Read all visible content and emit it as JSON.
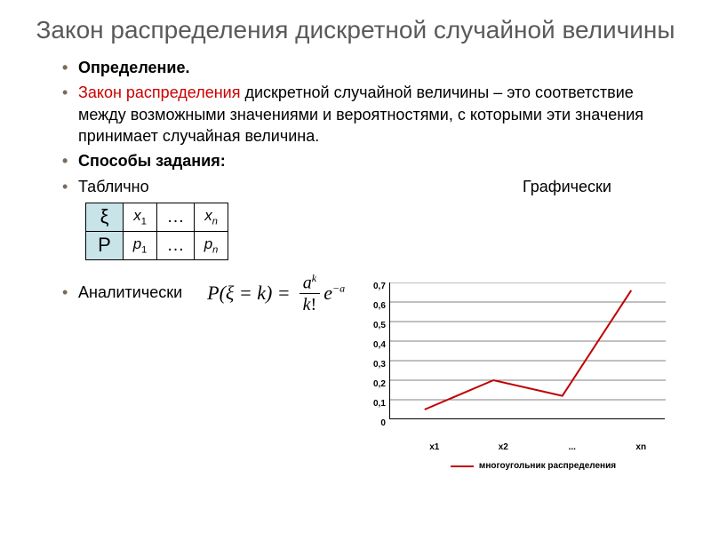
{
  "title": "Закон распределения дискретной случайной величины",
  "bullets": {
    "definition_label": "Определение.",
    "definition_red": "Закон распределения",
    "definition_rest": " дискретной случайной величины – это соответствие между возможными значениями и вероятностями, с которыми эти значения принимает случайная величина.",
    "methods_label": "Способы задания:",
    "tabular": "Таблично",
    "graphical": "Графически",
    "analytical": " Аналитически"
  },
  "table": {
    "row1_hdr": "ξ",
    "row2_hdr": "P",
    "x1": "x",
    "x1_sub": "1",
    "xn": "x",
    "xn_sub": "n",
    "p1": "p",
    "p1_sub": "1",
    "pn": "p",
    "pn_sub": "n",
    "dots": "…"
  },
  "formula": {
    "lhs_P": "P",
    "lhs_open": "(",
    "lhs_xi": "ξ",
    "lhs_eq": " = ",
    "lhs_k": "k",
    "lhs_close": ") = ",
    "num_a": "a",
    "num_k": "k",
    "den_k": "k",
    "den_fact": "!",
    "e": "e",
    "exp_minus": "−",
    "exp_a": "a"
  },
  "chart": {
    "type": "line",
    "yticks": [
      "0,7",
      "0,6",
      "0,5",
      "0,4",
      "0,3",
      "0,2",
      "0,1",
      "0"
    ],
    "xticks": [
      "x1",
      "x2",
      "...",
      "xn"
    ],
    "ylim": [
      0,
      0.7
    ],
    "values": [
      0.05,
      0.2,
      0.12,
      0.66
    ],
    "line_color": "#c00000",
    "grid_color": "#000000",
    "axis_color": "#000000",
    "tick_fontsize": 10,
    "line_width": 2,
    "legend_label": "многоугольник распределения"
  }
}
